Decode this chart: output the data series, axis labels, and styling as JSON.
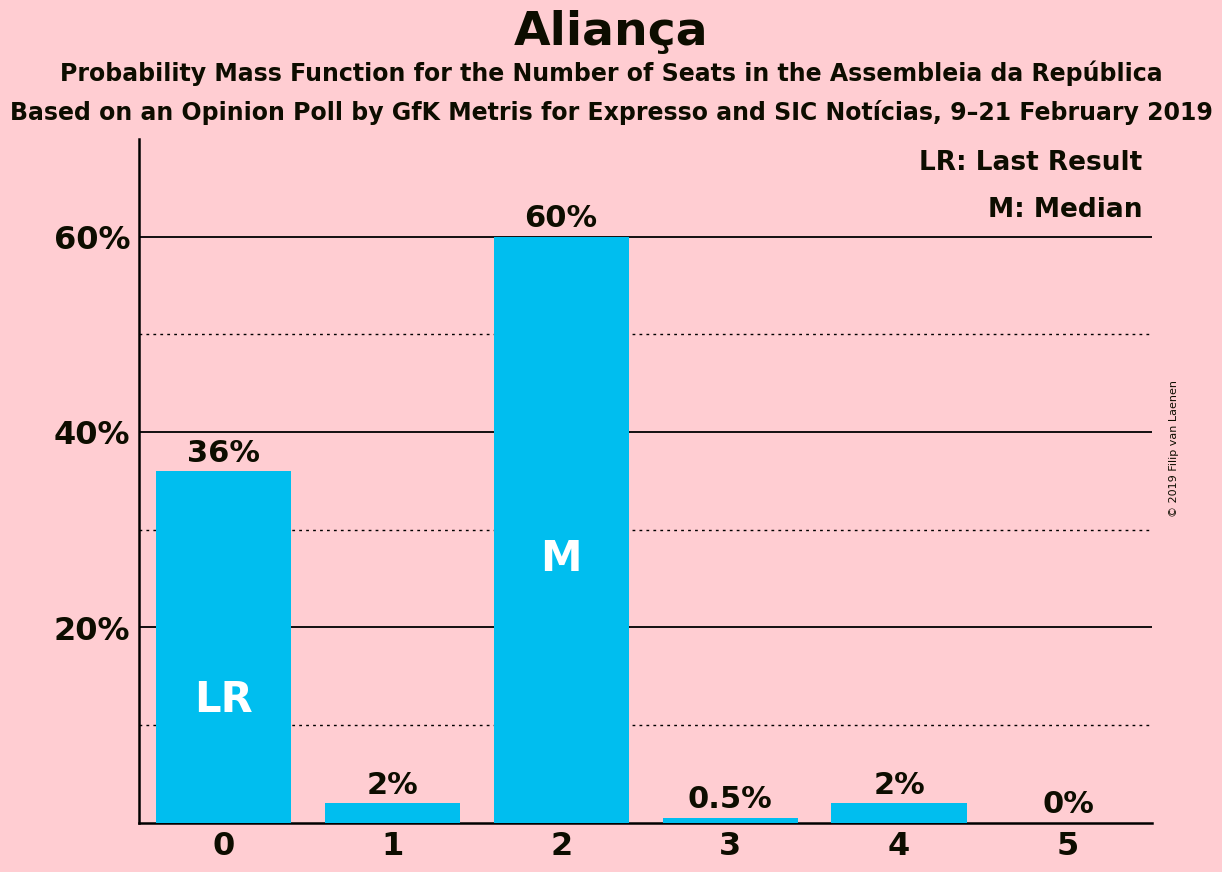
{
  "title": "Aliança",
  "subtitle1": "Probability Mass Function for the Number of Seats in the Assembleia da República",
  "subtitle2": "Based on an Opinion Poll by GfK Metris for Expresso and SIC Notícias, 9–21 February 2019",
  "copyright": "© 2019 Filip van Laenen",
  "categories": [
    0,
    1,
    2,
    3,
    4,
    5
  ],
  "values": [
    0.36,
    0.02,
    0.6,
    0.005,
    0.02,
    0.0
  ],
  "bar_labels": [
    "36%",
    "2%",
    "60%",
    "0.5%",
    "2%",
    "0%"
  ],
  "bar_color": "#00BEEF",
  "background_color": "#FFCDD2",
  "text_color": "#0d0d00",
  "lr_bar_index": 0,
  "median_bar_index": 2,
  "lr_label": "LR",
  "median_label": "M",
  "legend_lr": "LR: Last Result",
  "legend_m": "M: Median",
  "ylim": [
    0,
    0.7
  ],
  "yticks": [
    0.2,
    0.4,
    0.6
  ],
  "ytick_labels": [
    "20%",
    "40%",
    "60%"
  ],
  "dotted_lines": [
    0.1,
    0.3,
    0.5
  ],
  "solid_lines": [
    0.2,
    0.4,
    0.6
  ],
  "title_fontsize": 34,
  "subtitle1_fontsize": 17,
  "subtitle2_fontsize": 17,
  "axis_fontsize": 23,
  "bar_label_fontsize": 22,
  "inside_label_fontsize": 30,
  "legend_fontsize": 19,
  "copyright_fontsize": 8
}
